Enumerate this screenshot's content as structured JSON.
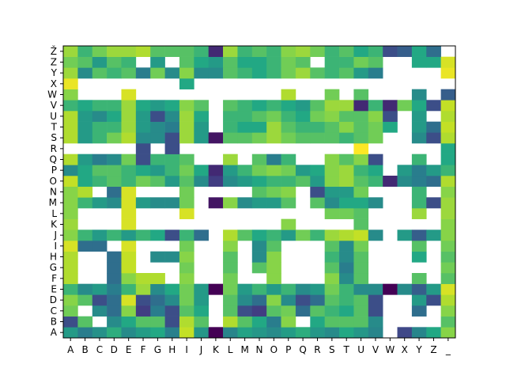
{
  "chart_data": {
    "type": "heatmap",
    "title": "",
    "xlabel": "",
    "ylabel": "",
    "x_categories": [
      "A",
      "B",
      "C",
      "D",
      "E",
      "F",
      "G",
      "H",
      "I",
      "J",
      "K",
      "L",
      "M",
      "N",
      "O",
      "P",
      "Q",
      "R",
      "S",
      "T",
      "U",
      "V",
      "W",
      "X",
      "Y",
      "Z",
      "_"
    ],
    "y_categories": [
      "A",
      "B",
      "C",
      "D",
      "E",
      "F",
      "G",
      "H",
      "I",
      "J",
      "K",
      "L",
      "M",
      "N",
      "O",
      "P",
      "Q",
      "R",
      "S",
      "T",
      "U",
      "V",
      "W",
      "X",
      "Y",
      "Z",
      "Ž"
    ],
    "colormap": [
      "#440154",
      "#414487",
      "#2a788e",
      "#22a884",
      "#7ad151",
      "#bddf26",
      "#fde725"
    ],
    "missing_color": "#ffffff",
    "values_note": "Rows listed bottom (A) to top (Ž); null = empty cell; values 0..1 on viridis scale.",
    "rows": [
      [
        0.45,
        0.35,
        0.42,
        0.52,
        0.4,
        0.46,
        0.5,
        0.36,
        0.85,
        0.44,
        0.0,
        0.38,
        0.48,
        0.44,
        0.4,
        0.46,
        0.52,
        0.44,
        0.4,
        0.5,
        0.44,
        0.38,
        null,
        0.18,
        0.38,
        0.5,
        0.7
      ],
      [
        0.2,
        0.6,
        null,
        0.4,
        0.5,
        0.6,
        0.6,
        0.2,
        0.8,
        0.6,
        null,
        0.8,
        0.6,
        0.5,
        0.35,
        0.7,
        null,
        0.5,
        0.6,
        0.6,
        0.6,
        0.4,
        null,
        null,
        null,
        null,
        0.6
      ],
      [
        0.65,
        null,
        0.4,
        0.3,
        0.7,
        0.15,
        0.35,
        0.2,
        0.6,
        0.5,
        null,
        0.6,
        0.2,
        0.15,
        0.6,
        0.65,
        0.3,
        0.6,
        0.55,
        0.5,
        0.6,
        0.2,
        null,
        null,
        0.3,
        null,
        0.7
      ],
      [
        0.7,
        0.6,
        0.2,
        0.3,
        0.9,
        0.2,
        0.3,
        0.4,
        0.65,
        0.45,
        null,
        0.6,
        0.4,
        0.3,
        0.7,
        0.4,
        0.2,
        0.3,
        0.6,
        0.55,
        0.6,
        0.2,
        null,
        null,
        0.45,
        0.2,
        0.8
      ],
      [
        0.55,
        0.4,
        0.45,
        0.35,
        0.55,
        0.75,
        0.4,
        0.5,
        0.65,
        0.45,
        0.0,
        0.65,
        0.45,
        0.55,
        0.45,
        0.55,
        0.4,
        0.45,
        0.65,
        0.55,
        0.4,
        0.4,
        0.0,
        0.4,
        0.25,
        0.45,
        0.9
      ],
      [
        0.8,
        null,
        null,
        0.3,
        0.7,
        0.8,
        0.8,
        null,
        0.7,
        null,
        null,
        0.65,
        null,
        null,
        0.7,
        null,
        null,
        null,
        0.7,
        0.4,
        0.6,
        null,
        null,
        null,
        0.6,
        null,
        0.6
      ],
      [
        0.8,
        null,
        null,
        0.3,
        0.85,
        null,
        null,
        null,
        0.65,
        null,
        null,
        0.6,
        null,
        0.6,
        0.7,
        null,
        null,
        null,
        0.6,
        0.35,
        0.6,
        null,
        null,
        null,
        null,
        null,
        0.65
      ],
      [
        0.8,
        null,
        null,
        0.3,
        0.85,
        null,
        0.4,
        0.4,
        0.7,
        null,
        null,
        0.6,
        null,
        0.4,
        0.7,
        null,
        null,
        null,
        0.55,
        0.4,
        0.6,
        null,
        null,
        null,
        0.5,
        null,
        0.6
      ],
      [
        0.9,
        0.3,
        0.3,
        null,
        0.9,
        null,
        null,
        null,
        0.65,
        null,
        null,
        0.7,
        null,
        0.4,
        0.6,
        null,
        null,
        null,
        0.6,
        0.4,
        0.65,
        null,
        null,
        null,
        0.6,
        null,
        0.65
      ],
      [
        0.7,
        0.55,
        0.45,
        0.55,
        0.45,
        0.55,
        0.5,
        0.2,
        0.55,
        0.3,
        null,
        0.8,
        0.6,
        0.5,
        0.55,
        0.45,
        0.65,
        0.55,
        0.75,
        0.8,
        0.85,
        0.4,
        null,
        0.45,
        0.25,
        0.45,
        0.7
      ],
      [
        0.75,
        null,
        null,
        null,
        0.9,
        null,
        null,
        null,
        null,
        null,
        null,
        null,
        null,
        null,
        null,
        0.7,
        null,
        null,
        null,
        null,
        0.6,
        null,
        null,
        null,
        null,
        null,
        0.7
      ],
      [
        0.7,
        null,
        null,
        null,
        0.9,
        null,
        null,
        null,
        0.9,
        null,
        null,
        null,
        null,
        null,
        null,
        null,
        null,
        null,
        0.65,
        0.65,
        0.6,
        null,
        null,
        null,
        0.75,
        null,
        0.75
      ],
      [
        0.7,
        0.55,
        0.45,
        0.4,
        0.9,
        0.45,
        0.4,
        0.4,
        0.65,
        null,
        0.05,
        0.7,
        0.4,
        0.45,
        0.45,
        0.6,
        null,
        0.6,
        0.4,
        0.5,
        0.5,
        0.4,
        null,
        null,
        0.55,
        0.2,
        0.75
      ],
      [
        0.7,
        0.8,
        null,
        0.3,
        0.9,
        null,
        null,
        null,
        0.65,
        null,
        null,
        null,
        null,
        0.6,
        0.65,
        0.7,
        null,
        0.2,
        0.45,
        0.45,
        0.65,
        null,
        null,
        null,
        0.55,
        null,
        0.7
      ],
      [
        0.85,
        0.5,
        0.55,
        0.6,
        0.55,
        0.65,
        0.6,
        0.45,
        0.6,
        0.4,
        0.15,
        0.4,
        0.45,
        0.5,
        0.55,
        0.55,
        0.6,
        0.45,
        0.7,
        0.75,
        0.6,
        0.55,
        0.1,
        0.4,
        0.35,
        0.3,
        0.8
      ],
      [
        0.4,
        0.5,
        0.6,
        0.6,
        0.55,
        0.5,
        0.45,
        0.55,
        0.65,
        0.5,
        0.1,
        0.45,
        0.55,
        0.65,
        0.7,
        0.65,
        0.45,
        0.5,
        0.7,
        0.75,
        0.55,
        0.5,
        null,
        0.45,
        0.35,
        0.45,
        0.55
      ],
      [
        0.8,
        0.45,
        0.35,
        0.4,
        0.65,
        0.2,
        0.55,
        0.55,
        0.6,
        null,
        null,
        0.75,
        null,
        0.6,
        0.35,
        0.55,
        null,
        null,
        0.7,
        0.6,
        0.7,
        0.2,
        null,
        null,
        0.55,
        null,
        0.5
      ],
      [
        null,
        null,
        null,
        null,
        null,
        0.2,
        null,
        0.2,
        null,
        null,
        null,
        null,
        null,
        null,
        null,
        null,
        null,
        null,
        null,
        null,
        1.0,
        null,
        null,
        null,
        null,
        null,
        0.5
      ],
      [
        0.8,
        0.45,
        0.55,
        0.65,
        0.8,
        0.4,
        0.4,
        0.2,
        0.75,
        0.45,
        0.05,
        0.6,
        0.6,
        0.65,
        0.75,
        0.65,
        0.6,
        0.6,
        0.6,
        0.55,
        0.6,
        0.65,
        null,
        null,
        0.4,
        0.2,
        0.8
      ],
      [
        0.8,
        0.45,
        0.55,
        0.55,
        0.75,
        0.45,
        0.4,
        0.35,
        0.75,
        0.45,
        null,
        0.55,
        0.5,
        0.5,
        0.75,
        0.6,
        0.55,
        0.55,
        0.6,
        0.7,
        0.6,
        0.65,
        0.5,
        null,
        0.45,
        0.3,
        0.85
      ],
      [
        0.8,
        0.45,
        0.4,
        0.5,
        0.75,
        0.45,
        0.2,
        0.4,
        0.75,
        0.5,
        null,
        0.55,
        0.55,
        0.6,
        0.65,
        0.55,
        0.5,
        0.65,
        0.7,
        0.6,
        0.6,
        0.7,
        0.2,
        null,
        0.45,
        null,
        0.8
      ],
      [
        0.55,
        0.5,
        0.55,
        0.55,
        0.75,
        0.5,
        0.45,
        0.5,
        0.7,
        0.6,
        null,
        0.6,
        0.55,
        0.5,
        0.55,
        0.5,
        0.45,
        0.6,
        0.75,
        0.75,
        0.1,
        0.55,
        0.1,
        0.65,
        0.5,
        0.2,
        0.85
      ],
      [
        0.7,
        null,
        null,
        null,
        0.9,
        null,
        null,
        null,
        null,
        null,
        null,
        null,
        null,
        null,
        null,
        0.8,
        null,
        null,
        0.65,
        null,
        0.6,
        null,
        null,
        null,
        0.4,
        null,
        0.25
      ],
      [
        0.95,
        null,
        null,
        null,
        null,
        null,
        null,
        null,
        0.5,
        null,
        null,
        null,
        null,
        null,
        null,
        null,
        null,
        null,
        null,
        null,
        null,
        null,
        null,
        null,
        null,
        null,
        null
      ],
      [
        0.75,
        0.4,
        0.6,
        0.55,
        0.6,
        0.35,
        0.65,
        0.4,
        0.7,
        0.4,
        0.4,
        0.6,
        0.55,
        0.5,
        0.55,
        0.65,
        0.75,
        0.6,
        0.55,
        0.6,
        0.45,
        0.35,
        null,
        null,
        null,
        null,
        0.95
      ],
      [
        0.65,
        0.6,
        0.45,
        0.6,
        0.55,
        null,
        0.45,
        null,
        0.6,
        0.5,
        0.45,
        0.6,
        0.5,
        0.5,
        0.55,
        0.65,
        0.6,
        null,
        0.55,
        0.55,
        0.65,
        0.6,
        null,
        null,
        0.5,
        0.5,
        0.9
      ],
      [
        0.75,
        0.55,
        0.65,
        0.75,
        0.75,
        0.8,
        0.6,
        0.6,
        0.6,
        0.55,
        0.1,
        0.75,
        0.55,
        0.6,
        0.55,
        0.7,
        0.75,
        0.65,
        0.55,
        0.6,
        0.5,
        0.55,
        0.2,
        0.25,
        0.5,
        0.3,
        null
      ]
    ]
  }
}
